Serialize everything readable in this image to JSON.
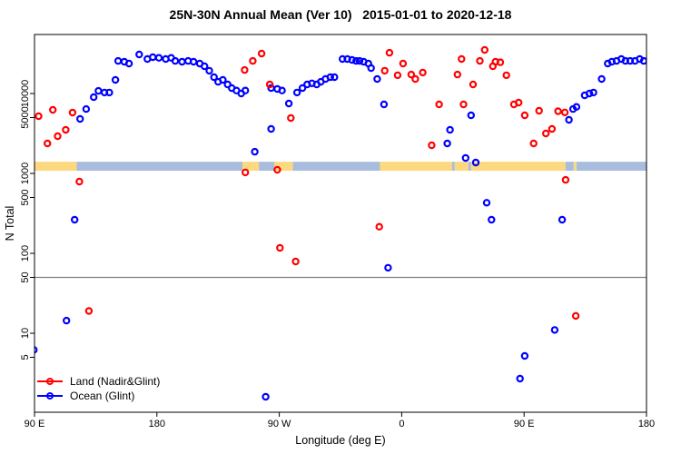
{
  "colors": {
    "land": "#ff0000",
    "ocean": "#0000ff",
    "band_land": "#fcd87e",
    "band_ocean": "#a8bdde",
    "reference_line": "#7f7f7f",
    "axis": "#000000"
  },
  "chart_data": {
    "type": "scatter",
    "title": "25N-30N Annual Mean (Ver 10)   2015-01-01 to 2020-12-18",
    "xlabel": "Longitude (deg E)",
    "ylabel": "N Total",
    "grid": false,
    "legend_position": "bottom-left",
    "x_axis": {
      "start_deg": 90,
      "span_deg": 450,
      "ticks": [
        {
          "deg": 90,
          "label": "90 E"
        },
        {
          "deg": 180,
          "label": "180"
        },
        {
          "deg": 270,
          "label": "90 W"
        },
        {
          "deg": 360,
          "label": "0"
        },
        {
          "deg": 450,
          "label": "90 E"
        },
        {
          "deg": 540,
          "label": "180"
        }
      ]
    },
    "y_axis": {
      "scale": "log10",
      "min": 1,
      "max": 55000,
      "ticks": [
        {
          "value": 5,
          "label": "5"
        },
        {
          "value": 10,
          "label": "10"
        },
        {
          "value": 50,
          "label": "50"
        },
        {
          "value": 100,
          "label": "100"
        },
        {
          "value": 500,
          "label": "500"
        },
        {
          "value": 1000,
          "label": "1000"
        },
        {
          "value": 5000,
          "label": "5000"
        },
        {
          "value": 10000,
          "label": "10000"
        }
      ]
    },
    "reference_line_y": 50,
    "terrain_band": {
      "n_range": [
        1080,
        1400
      ],
      "segments": [
        {
          "from": 90,
          "to": 121,
          "surface": "land"
        },
        {
          "from": 121,
          "to": 243,
          "surface": "ocean"
        },
        {
          "from": 243,
          "to": 255,
          "surface": "land"
        },
        {
          "from": 255,
          "to": 266.5,
          "surface": "ocean"
        },
        {
          "from": 266.5,
          "to": 280,
          "surface": "land"
        },
        {
          "from": 280,
          "to": 344,
          "surface": "ocean"
        },
        {
          "from": 344,
          "to": 397,
          "surface": "land"
        },
        {
          "from": 397,
          "to": 399,
          "surface": "ocean"
        },
        {
          "from": 399,
          "to": 409,
          "surface": "land"
        },
        {
          "from": 409,
          "to": 411,
          "surface": "ocean"
        },
        {
          "from": 411,
          "to": 480.5,
          "surface": "land"
        },
        {
          "from": 480.5,
          "to": 486.5,
          "surface": "ocean"
        },
        {
          "from": 486.5,
          "to": 488.5,
          "surface": "land"
        },
        {
          "from": 488.5,
          "to": 540,
          "surface": "ocean"
        }
      ]
    },
    "series": [
      {
        "name": "Land (Nadir&Glint)",
        "color": "#ff0000",
        "marker": "open-circle",
        "points": [
          [
            93,
            5200
          ],
          [
            99.5,
            2370
          ],
          [
            103.5,
            6240
          ],
          [
            107,
            2920
          ],
          [
            113,
            3510
          ],
          [
            118,
            5770
          ],
          [
            123,
            790
          ],
          [
            130,
            19
          ],
          [
            244.5,
            19700
          ],
          [
            245,
            1030
          ],
          [
            250.5,
            25600
          ],
          [
            257,
            31600
          ],
          [
            263,
            13000
          ],
          [
            268.5,
            1110
          ],
          [
            270.5,
            117
          ],
          [
            278.5,
            4930
          ],
          [
            282,
            79
          ],
          [
            343.5,
            215
          ],
          [
            347.5,
            19300
          ],
          [
            351,
            32400
          ],
          [
            357,
            16900
          ],
          [
            361,
            23700
          ],
          [
            367,
            17300
          ],
          [
            370,
            15200
          ],
          [
            375.5,
            18300
          ],
          [
            382,
            2250
          ],
          [
            387.5,
            7300
          ],
          [
            401,
            17300
          ],
          [
            404,
            27000
          ],
          [
            405.5,
            7300
          ],
          [
            412.5,
            13000
          ],
          [
            417.5,
            25600
          ],
          [
            421,
            35100
          ],
          [
            427,
            21900
          ],
          [
            429,
            25000
          ],
          [
            432.5,
            24600
          ],
          [
            437,
            16900
          ],
          [
            442.5,
            7300
          ],
          [
            446,
            7700
          ],
          [
            450.5,
            5330
          ],
          [
            457,
            2370
          ],
          [
            461,
            6080
          ],
          [
            466,
            3160
          ],
          [
            470.5,
            3600
          ],
          [
            475,
            6000
          ],
          [
            480,
            5800
          ],
          [
            480.5,
            830
          ],
          [
            488,
            16.5
          ]
        ]
      },
      {
        "name": "Ocean (Glint)",
        "color": "#0000ff",
        "marker": "open-circle",
        "points": [
          [
            89.5,
            6.2
          ],
          [
            113.5,
            14.4
          ],
          [
            119.5,
            263
          ],
          [
            123.5,
            4810
          ],
          [
            128,
            6400
          ],
          [
            133.5,
            9000
          ],
          [
            137,
            10800
          ],
          [
            141.5,
            10300
          ],
          [
            145,
            10300
          ],
          [
            149.5,
            14800
          ],
          [
            151.5,
            25600
          ],
          [
            156,
            25000
          ],
          [
            159.5,
            23700
          ],
          [
            167,
            30800
          ],
          [
            173,
            27000
          ],
          [
            177,
            28500
          ],
          [
            181.5,
            28000
          ],
          [
            186.5,
            27000
          ],
          [
            190.5,
            28000
          ],
          [
            193.5,
            25600
          ],
          [
            198.5,
            25000
          ],
          [
            203,
            25600
          ],
          [
            207,
            25000
          ],
          [
            211.5,
            23700
          ],
          [
            215,
            21900
          ],
          [
            218.5,
            19300
          ],
          [
            222,
            16000
          ],
          [
            225,
            14000
          ],
          [
            228.5,
            14800
          ],
          [
            232,
            13000
          ],
          [
            235,
            11700
          ],
          [
            238.5,
            10900
          ],
          [
            242,
            10000
          ],
          [
            245,
            10900
          ],
          [
            252,
            1870
          ],
          [
            260,
            1.6
          ],
          [
            264,
            11700
          ],
          [
            264,
            3600
          ],
          [
            268.5,
            11400
          ],
          [
            272,
            10900
          ],
          [
            277,
            7500
          ],
          [
            283,
            10300
          ],
          [
            287,
            11700
          ],
          [
            290.5,
            13000
          ],
          [
            294,
            13400
          ],
          [
            297.5,
            13000
          ],
          [
            300.5,
            14000
          ],
          [
            304,
            15200
          ],
          [
            307.5,
            16000
          ],
          [
            310.5,
            16000
          ],
          [
            316.5,
            27000
          ],
          [
            320,
            27000
          ],
          [
            323.5,
            26300
          ],
          [
            326.5,
            25600
          ],
          [
            329,
            25600
          ],
          [
            332,
            25000
          ],
          [
            335.5,
            23700
          ],
          [
            337.5,
            20800
          ],
          [
            342,
            15200
          ],
          [
            347,
            7300
          ],
          [
            350,
            66
          ],
          [
            393.5,
            2370
          ],
          [
            395.5,
            3510
          ],
          [
            407,
            1560
          ],
          [
            411,
            5330
          ],
          [
            414.5,
            1370
          ],
          [
            422.5,
            430
          ],
          [
            426,
            263
          ],
          [
            447,
            2.7
          ],
          [
            450.5,
            5.2
          ],
          [
            472.5,
            11
          ],
          [
            478,
            263
          ],
          [
            483,
            4680
          ],
          [
            486,
            6400
          ],
          [
            488.5,
            6800
          ],
          [
            494.5,
            9500
          ],
          [
            498,
            10000
          ],
          [
            501,
            10300
          ],
          [
            507,
            15200
          ],
          [
            511.5,
            23700
          ],
          [
            514.5,
            25000
          ],
          [
            518,
            25600
          ],
          [
            521.5,
            27000
          ],
          [
            524.5,
            25600
          ],
          [
            528,
            25600
          ],
          [
            531.5,
            25600
          ],
          [
            535,
            27000
          ],
          [
            538,
            25600
          ]
        ]
      }
    ]
  }
}
